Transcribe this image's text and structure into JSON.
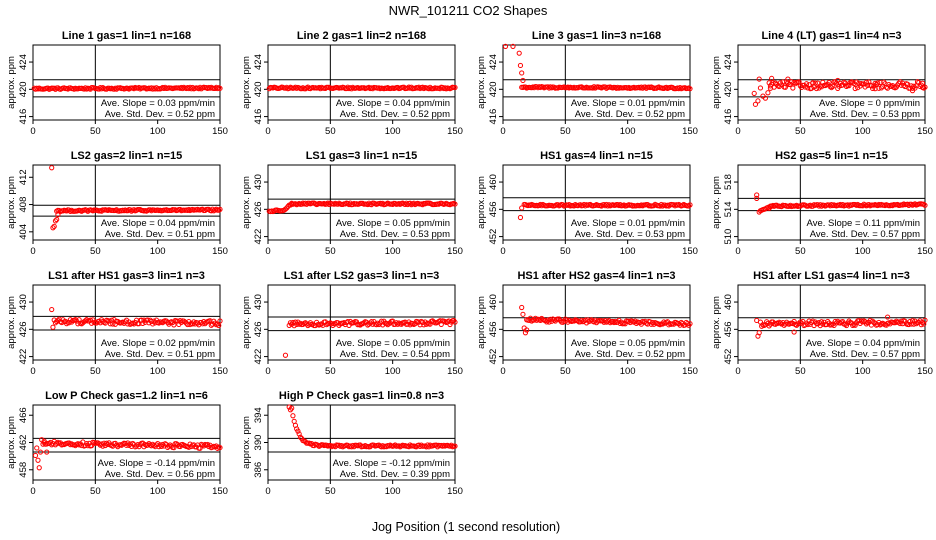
{
  "figure": {
    "title": "NWR_101211  CO2 Shapes",
    "xlabel": "Jog Position (1 second resolution)"
  },
  "chart_data": [
    {
      "type": "scatter",
      "title": "Line 1 gas=1 lin=1 n=168",
      "ylabel": "approx. ppm",
      "xlim": [
        0,
        150
      ],
      "x_ticks": [
        0,
        50,
        100,
        150
      ],
      "ylim": [
        415.5,
        426.5
      ],
      "y_ticks": [
        416,
        420,
        424
      ],
      "vline_x": 50,
      "hlines": [
        421.4,
        418.9
      ],
      "slope_text": "Ave. Slope = 0.03 ppm/min",
      "sd_text": "Ave. Std. Dev. = 0.52 ppm",
      "series": [
        {
          "segments": [
            {
              "x0": 1,
              "x1": 150,
              "y0": 420.1,
              "y1": 420.2
            }
          ],
          "points": []
        }
      ]
    },
    {
      "type": "scatter",
      "title": "Line 2 gas=1 lin=2 n=168",
      "ylabel": "approx. ppm",
      "xlim": [
        0,
        150
      ],
      "x_ticks": [
        0,
        50,
        100,
        150
      ],
      "ylim": [
        415.5,
        426.5
      ],
      "y_ticks": [
        416,
        420,
        424
      ],
      "vline_x": 50,
      "hlines": [
        421.4,
        418.9
      ],
      "slope_text": "Ave. Slope = 0.04 ppm/min",
      "sd_text": "Ave. Std. Dev. = 0.52 ppm",
      "series": [
        {
          "segments": [
            {
              "x0": 1,
              "x1": 150,
              "y0": 420.2,
              "y1": 420.2
            }
          ],
          "points": []
        }
      ]
    },
    {
      "type": "scatter",
      "title": "Line 3 gas=1 lin=3 n=168",
      "ylabel": "approx. ppm",
      "xlim": [
        0,
        150
      ],
      "x_ticks": [
        0,
        50,
        100,
        150
      ],
      "ylim": [
        415.5,
        426.5
      ],
      "y_ticks": [
        416,
        420,
        424
      ],
      "vline_x": 50,
      "hlines": [
        421.4,
        418.9
      ],
      "slope_text": "Ave. Slope = 0.01 ppm/min",
      "sd_text": "Ave. Std. Dev. = 0.52 ppm",
      "series": [
        {
          "segments": [
            {
              "x0": 15,
              "x1": 150,
              "y0": 420.3,
              "y1": 420.2
            }
          ],
          "points": [
            [
              2,
              426.3
            ],
            [
              8,
              426.3
            ],
            [
              13,
              425.3
            ],
            [
              14,
              423.5
            ],
            [
              15,
              422.4
            ],
            [
              16,
              421.3
            ]
          ]
        }
      ]
    },
    {
      "type": "scatter",
      "title": "Line 4 (LT) gas=1 lin=4 n=3",
      "ylabel": "approx. ppm",
      "xlim": [
        0,
        150
      ],
      "x_ticks": [
        0,
        50,
        100,
        150
      ],
      "ylim": [
        415.5,
        426.5
      ],
      "y_ticks": [
        416,
        420,
        424
      ],
      "vline_x": 50,
      "hlines": [
        421.4,
        418.9
      ],
      "slope_text": "Ave. Slope = 0 ppm/min",
      "sd_text": "Ave. Std. Dev. = 0.53 ppm",
      "series": [
        {
          "segments": [
            {
              "x0": 25,
              "x1": 150,
              "y0": 420.6,
              "y1": 420.6,
              "jitter": 0.5
            }
          ],
          "points": [
            [
              13,
              419.4
            ],
            [
              14,
              417.8
            ],
            [
              16,
              418.3
            ],
            [
              17,
              421.5
            ],
            [
              18,
              420.2
            ],
            [
              20,
              419.0
            ],
            [
              22,
              418.7
            ],
            [
              24,
              419.5
            ],
            [
              26,
              420.5
            ],
            [
              27,
              421.6
            ],
            [
              30,
              420.9
            ],
            [
              40,
              421.5
            ],
            [
              60,
              420.9
            ],
            [
              80,
              421.3
            ],
            [
              110,
              420.1
            ],
            [
              140,
              419.8
            ],
            [
              148,
              420.9
            ]
          ]
        }
      ]
    },
    {
      "type": "scatter",
      "title": "LS2 gas=2 lin=1 n=15",
      "ylabel": "approx. ppm",
      "xlim": [
        0,
        150
      ],
      "x_ticks": [
        0,
        50,
        100,
        150
      ],
      "ylim": [
        402.8,
        413.8
      ],
      "y_ticks": [
        404,
        408,
        412
      ],
      "vline_x": 50,
      "hlines": [
        407.9,
        406.3
      ],
      "slope_text": "Ave. Slope = 0.04 ppm/min",
      "sd_text": "Ave. Std. Dev. = 0.51 ppm",
      "series": [
        {
          "segments": [
            {
              "x0": 19,
              "x1": 150,
              "y0": 407.1,
              "y1": 407.2
            }
          ],
          "points": [
            [
              15,
              413.4
            ],
            [
              16,
              404.6
            ],
            [
              17,
              404.8
            ],
            [
              18,
              405.6
            ],
            [
              19,
              405.8
            ],
            [
              20,
              406.5
            ]
          ]
        }
      ]
    },
    {
      "type": "scatter",
      "title": "LS1 gas=3 lin=1 n=15",
      "ylabel": "approx. ppm",
      "xlim": [
        0,
        150
      ],
      "x_ticks": [
        0,
        50,
        100,
        150
      ],
      "ylim": [
        421.5,
        432.5
      ],
      "y_ticks": [
        422,
        426,
        430
      ],
      "vline_x": 50,
      "hlines": [
        427.5,
        425.4
      ],
      "slope_text": "Ave. Slope = 0.05 ppm/min",
      "sd_text": "Ave. Std. Dev. = 0.53 ppm",
      "series": [
        {
          "segments": [
            {
              "x0": 1,
              "x1": 12,
              "y0": 425.7,
              "y1": 425.9
            },
            {
              "x0": 13,
              "x1": 19,
              "y0": 426.0,
              "y1": 426.8
            },
            {
              "x0": 19,
              "x1": 150,
              "y0": 426.8,
              "y1": 426.8
            }
          ],
          "points": []
        }
      ]
    },
    {
      "type": "scatter",
      "title": "HS1 gas=4 lin=1 n=15",
      "ylabel": "approx. ppm",
      "xlim": [
        0,
        150
      ],
      "x_ticks": [
        0,
        50,
        100,
        150
      ],
      "ylim": [
        451.5,
        462.5
      ],
      "y_ticks": [
        452,
        456,
        460
      ],
      "vline_x": 50,
      "hlines": [
        457.7,
        455.8
      ],
      "slope_text": "Ave. Slope = 0.01 ppm/min",
      "sd_text": "Ave. Std. Dev. = 0.53 ppm",
      "series": [
        {
          "segments": [
            {
              "x0": 17,
              "x1": 150,
              "y0": 456.6,
              "y1": 456.6
            }
          ],
          "points": [
            [
              14,
              454.8
            ],
            [
              15,
              456.2
            ]
          ]
        }
      ]
    },
    {
      "type": "scatter",
      "title": "HS2 gas=5 lin=1 n=15",
      "ylabel": "approx. ppm",
      "xlim": [
        0,
        150
      ],
      "x_ticks": [
        0,
        50,
        100,
        150
      ],
      "ylim": [
        509.5,
        520.5
      ],
      "y_ticks": [
        510,
        514,
        518
      ],
      "vline_x": 50,
      "hlines": [
        515.6,
        513.8
      ],
      "slope_text": "Ave. Slope = 0.11 ppm/min",
      "sd_text": "Ave. Std. Dev. = 0.57 ppm",
      "series": [
        {
          "segments": [
            {
              "x0": 19,
              "x1": 26,
              "y0": 513.9,
              "y1": 514.3
            },
            {
              "x0": 26,
              "x1": 150,
              "y0": 514.5,
              "y1": 514.7
            }
          ],
          "points": [
            [
              15,
              516.1
            ],
            [
              15,
              515.6
            ],
            [
              17,
              513.6
            ],
            [
              18,
              513.8
            ]
          ]
        }
      ]
    },
    {
      "type": "scatter",
      "title": "LS1 after HS1 gas=3 lin=1 n=3",
      "ylabel": "approx. ppm",
      "xlim": [
        0,
        150
      ],
      "x_ticks": [
        0,
        50,
        100,
        150
      ],
      "ylim": [
        421.5,
        432.5
      ],
      "y_ticks": [
        422,
        426,
        430
      ],
      "vline_x": 50,
      "hlines": [
        427.9,
        425.9
      ],
      "slope_text": "Ave. Slope = 0.02 ppm/min",
      "sd_text": "Ave. Std. Dev. = 0.51 ppm",
      "series": [
        {
          "segments": [
            {
              "x0": 17,
              "x1": 150,
              "y0": 427.2,
              "y1": 426.9,
              "jitter": 0.35
            }
          ],
          "points": [
            [
              15,
              428.9
            ],
            [
              16,
              426.3
            ]
          ]
        }
      ]
    },
    {
      "type": "scatter",
      "title": "LS1 after LS2 gas=3 lin=1 n=3",
      "ylabel": "approx. ppm",
      "xlim": [
        0,
        150
      ],
      "x_ticks": [
        0,
        50,
        100,
        150
      ],
      "ylim": [
        421.5,
        432.5
      ],
      "y_ticks": [
        422,
        426,
        430
      ],
      "vline_x": 50,
      "hlines": [
        427.8,
        425.8
      ],
      "slope_text": "Ave. Slope = 0.05 ppm/min",
      "sd_text": "Ave. Std. Dev. = 0.54 ppm",
      "series": [
        {
          "segments": [
            {
              "x0": 17,
              "x1": 150,
              "y0": 426.8,
              "y1": 427.0,
              "jitter": 0.3
            }
          ],
          "points": [
            [
              14,
              422.2
            ]
          ]
        }
      ]
    },
    {
      "type": "scatter",
      "title": "HS1 after HS2 gas=4 lin=1 n=3",
      "ylabel": "approx. ppm",
      "xlim": [
        0,
        150
      ],
      "x_ticks": [
        0,
        50,
        100,
        150
      ],
      "ylim": [
        451.5,
        462.5
      ],
      "y_ticks": [
        452,
        456,
        460
      ],
      "vline_x": 50,
      "hlines": [
        457.7,
        455.8
      ],
      "slope_text": "Ave. Slope = 0.05 ppm/min",
      "sd_text": "Ave. Std. Dev. = 0.52 ppm",
      "series": [
        {
          "segments": [
            {
              "x0": 19,
              "x1": 150,
              "y0": 457.4,
              "y1": 456.8,
              "jitter": 0.25
            }
          ],
          "points": [
            [
              15,
              459.2
            ],
            [
              16,
              458.2
            ],
            [
              17,
              456.2
            ],
            [
              18,
              455.5
            ],
            [
              19,
              455.9
            ]
          ]
        }
      ]
    },
    {
      "type": "scatter",
      "title": "HS1 after LS1 gas=4 lin=1 n=3",
      "ylabel": "approx. ppm",
      "xlim": [
        0,
        150
      ],
      "x_ticks": [
        0,
        50,
        100,
        150
      ],
      "ylim": [
        451.5,
        462.5
      ],
      "y_ticks": [
        452,
        456,
        460
      ],
      "vline_x": 50,
      "hlines": [
        457.7,
        455.8
      ],
      "slope_text": "Ave. Slope = 0.04 ppm/min",
      "sd_text": "Ave. Std. Dev. = 0.57 ppm",
      "series": [
        {
          "segments": [
            {
              "x0": 18,
              "x1": 150,
              "y0": 456.8,
              "y1": 457.0,
              "jitter": 0.35
            }
          ],
          "points": [
            [
              15,
              457.3
            ],
            [
              16,
              455.0
            ],
            [
              17,
              455.5
            ],
            [
              45,
              455.6
            ],
            [
              120,
              457.8
            ]
          ]
        }
      ]
    },
    {
      "type": "scatter",
      "title": "Low P Check gas=1.2 lin=1 n=6",
      "ylabel": "approx. ppm",
      "xlim": [
        0,
        150
      ],
      "x_ticks": [
        0,
        50,
        100,
        150
      ],
      "ylim": [
        456.5,
        467.5
      ],
      "y_ticks": [
        458,
        462,
        466
      ],
      "vline_x": 50,
      "hlines": [
        462.6,
        460.6
      ],
      "slope_text": "Ave. Slope = -0.14 ppm/min",
      "sd_text": "Ave. Std. Dev. = 0.56 ppm",
      "series": [
        {
          "segments": [
            {
              "x0": 8,
              "x1": 150,
              "y0": 461.9,
              "y1": 461.4,
              "jitter": 0.3
            }
          ],
          "points": [
            [
              2,
              460.1
            ],
            [
              3,
              461.2
            ],
            [
              4,
              459.4
            ],
            [
              5,
              458.3
            ],
            [
              6,
              460.6
            ],
            [
              7,
              462.4
            ],
            [
              9,
              462.2
            ],
            [
              11,
              460.6
            ]
          ]
        }
      ]
    },
    {
      "type": "scatter",
      "title": "High P Check gas=1 lin=0.8 n=3",
      "ylabel": "approx. ppm",
      "xlim": [
        0,
        150
      ],
      "x_ticks": [
        0,
        50,
        100,
        150
      ],
      "ylim": [
        384.5,
        395.5
      ],
      "y_ticks": [
        386,
        390,
        394
      ],
      "vline_x": 50,
      "hlines": [
        390.6,
        388.6
      ],
      "slope_text": "Ave. Slope = -0.12 ppm/min",
      "sd_text": "Ave. Std. Dev. = 0.39 ppm",
      "series": [
        {
          "curve": {
            "x0": 19,
            "x1": 150,
            "y_end": 389.5,
            "amp": 5.5,
            "tau": 5
          },
          "points": [
            [
              17,
              395.2
            ],
            [
              18,
              394.8
            ]
          ]
        }
      ]
    }
  ]
}
